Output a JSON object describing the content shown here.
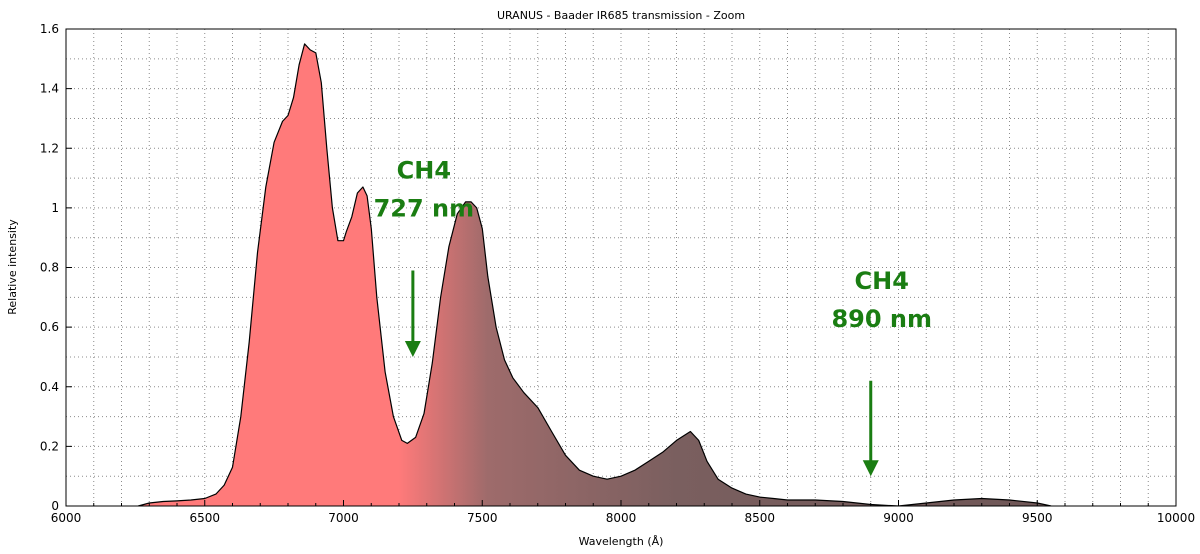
{
  "chart_data": {
    "type": "area",
    "title": "URANUS - Baader IR685  transmission - Zoom",
    "xlabel": "Wavelength (Å)",
    "ylabel": "Relative intensity",
    "xlim": [
      6000,
      10000
    ],
    "ylim": [
      0,
      1.6
    ],
    "xticks": [
      6000,
      6500,
      7000,
      7500,
      8000,
      8500,
      9000,
      9500,
      10000
    ],
    "xtick_labels": [
      "6000",
      "6500",
      "7000",
      "7500",
      "8000",
      "8500",
      "9000",
      "9500",
      "10000"
    ],
    "yticks": [
      0,
      0.2,
      0.4,
      0.6,
      0.8,
      1,
      1.2,
      1.4,
      1.6
    ],
    "ytick_labels": [
      "0",
      "0.2",
      "0.4",
      "0.6",
      "0.8",
      "1",
      "1.2",
      "1.4",
      "1.6"
    ],
    "grid": true,
    "minor_grid_step_x": 100,
    "colors": {
      "fill_start": "#ff7a7a",
      "fill_end": "#6e5656",
      "line": "#000000",
      "grid": "#8c8c8c",
      "annotation": "#1a7d12"
    },
    "series": [
      {
        "x": [
          6260,
          6300,
          6350,
          6400,
          6450,
          6500,
          6540,
          6570,
          6600,
          6630,
          6660,
          6690,
          6720,
          6750,
          6780,
          6800,
          6820,
          6840,
          6860,
          6880,
          6900,
          6920,
          6940,
          6960,
          6980,
          7000,
          7010,
          7030,
          7050,
          7070,
          7085,
          7100,
          7120,
          7150,
          7180,
          7210,
          7230,
          7260,
          7290,
          7320,
          7350,
          7380,
          7410,
          7440,
          7460,
          7480,
          7500,
          7520,
          7550,
          7580,
          7610,
          7650,
          7700,
          7750,
          7800,
          7850,
          7900,
          7950,
          8000,
          8050,
          8100,
          8150,
          8200,
          8250,
          8280,
          8310,
          8350,
          8400,
          8450,
          8500,
          8550,
          8600,
          8700,
          8800,
          8900,
          9000,
          9100,
          9200,
          9300,
          9400,
          9500,
          9550
        ],
        "y": [
          0.0,
          0.01,
          0.015,
          0.017,
          0.02,
          0.025,
          0.04,
          0.07,
          0.13,
          0.3,
          0.55,
          0.85,
          1.07,
          1.22,
          1.29,
          1.31,
          1.37,
          1.48,
          1.55,
          1.53,
          1.52,
          1.42,
          1.2,
          1.0,
          0.89,
          0.89,
          0.92,
          0.97,
          1.05,
          1.07,
          1.04,
          0.93,
          0.7,
          0.45,
          0.3,
          0.22,
          0.21,
          0.23,
          0.31,
          0.48,
          0.7,
          0.87,
          0.98,
          1.02,
          1.02,
          1.0,
          0.93,
          0.77,
          0.6,
          0.49,
          0.43,
          0.38,
          0.33,
          0.25,
          0.17,
          0.12,
          0.1,
          0.09,
          0.1,
          0.12,
          0.15,
          0.18,
          0.22,
          0.25,
          0.22,
          0.15,
          0.09,
          0.06,
          0.04,
          0.03,
          0.025,
          0.02,
          0.02,
          0.015,
          0.005,
          0.0,
          0.01,
          0.02,
          0.025,
          0.02,
          0.01,
          0.0
        ]
      }
    ],
    "annotations": [
      {
        "line1": "CH4",
        "line2": "727 nm",
        "x": 7250,
        "arrow_from_y": 0.79,
        "arrow_to_y": 0.5
      },
      {
        "line1": "CH4",
        "line2": "890 nm",
        "x": 8900,
        "arrow_from_y": 0.42,
        "arrow_to_y": 0.1
      }
    ]
  }
}
